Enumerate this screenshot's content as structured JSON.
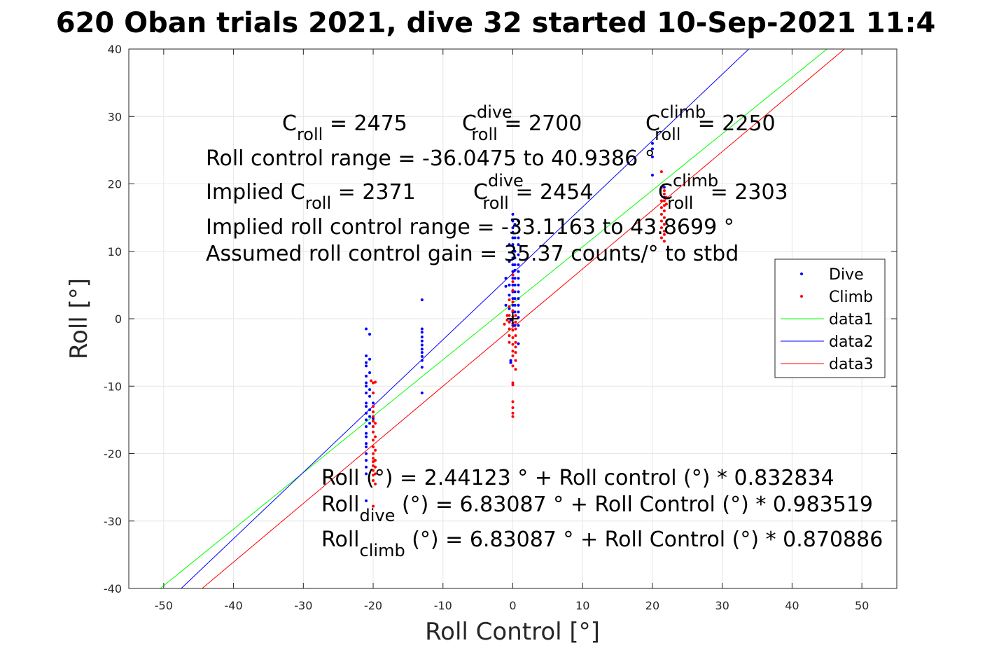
{
  "chart_data": {
    "type": "scatter",
    "title": "620 Oban trials 2021, dive 32 started 10-Sep-2021 11:4",
    "xlabel": "Roll Control [°]",
    "ylabel": "Roll [°]",
    "xlim": [
      -55,
      55
    ],
    "ylim": [
      -40,
      40
    ],
    "xticks": [
      -50,
      -40,
      -30,
      -20,
      -10,
      0,
      10,
      20,
      30,
      40,
      50
    ],
    "yticks": [
      -40,
      -30,
      -20,
      -10,
      0,
      10,
      20,
      30,
      40
    ],
    "xtick_labels": [
      "-50",
      "-40",
      "-30",
      "-20",
      "-10",
      "0",
      "10",
      "20",
      "30",
      "40",
      "50"
    ],
    "ytick_labels": [
      "-40",
      "-30",
      "-20",
      "-10",
      "0",
      "10",
      "20",
      "30",
      "40"
    ],
    "grid": true,
    "legend_position": "right",
    "series": [
      {
        "name": "Dive",
        "kind": "points",
        "color": "#0000ff",
        "points": [
          [
            -21,
            -1.5
          ],
          [
            -21,
            -5.5
          ],
          [
            -21,
            -6.5
          ],
          [
            -21,
            -7
          ],
          [
            -21,
            -8.5
          ],
          [
            -21,
            -9.5
          ],
          [
            -21,
            -10
          ],
          [
            -21,
            -11
          ],
          [
            -21,
            -12.5
          ],
          [
            -21,
            -13
          ],
          [
            -21,
            -14
          ],
          [
            -21,
            -15
          ],
          [
            -21,
            -16
          ],
          [
            -21,
            -17
          ],
          [
            -21,
            -17.5
          ],
          [
            -21,
            -18.5
          ],
          [
            -21,
            -19
          ],
          [
            -21,
            -20
          ],
          [
            -21,
            -21
          ],
          [
            -21,
            -22
          ],
          [
            -21,
            -23
          ],
          [
            -21,
            -27
          ],
          [
            -20.5,
            -2.3
          ],
          [
            -20.5,
            -6
          ],
          [
            -20.5,
            -8
          ],
          [
            -20.5,
            -10.5
          ],
          [
            -20.5,
            -11.5
          ],
          [
            -20.5,
            -13.5
          ],
          [
            -20.5,
            -14.5
          ],
          [
            -20.5,
            -15.5
          ],
          [
            -20,
            -12.5
          ],
          [
            -20,
            -14.8
          ],
          [
            -20,
            -16
          ],
          [
            -13,
            2.8
          ],
          [
            -13,
            -1.5
          ],
          [
            -13,
            -2
          ],
          [
            -13,
            -2.7
          ],
          [
            -13,
            -3.3
          ],
          [
            -13,
            -3.9
          ],
          [
            -13,
            -4.5
          ],
          [
            -13,
            -5
          ],
          [
            -13,
            -5.6
          ],
          [
            -13,
            -6.2
          ],
          [
            -13,
            -7.2
          ],
          [
            -13,
            -11
          ],
          [
            -1,
            6
          ],
          [
            -1,
            4.8
          ],
          [
            -1,
            2
          ],
          [
            -0.5,
            11
          ],
          [
            -0.5,
            8.5
          ],
          [
            -0.5,
            5
          ],
          [
            -0.5,
            3.5
          ],
          [
            -0.5,
            1.5
          ],
          [
            -0.3,
            -0.2
          ],
          [
            -0.3,
            -6.2
          ],
          [
            -0.3,
            -6.5
          ],
          [
            0,
            15.5
          ],
          [
            0,
            14.5
          ],
          [
            0,
            13.5
          ],
          [
            0,
            12.8
          ],
          [
            0,
            12
          ],
          [
            0,
            11
          ],
          [
            0,
            10
          ],
          [
            0,
            9
          ],
          [
            0,
            8
          ],
          [
            0,
            7
          ],
          [
            0,
            6.5
          ],
          [
            0,
            6
          ],
          [
            0,
            5
          ],
          [
            0,
            4
          ],
          [
            0,
            3
          ],
          [
            0,
            2
          ],
          [
            0,
            1
          ],
          [
            0,
            -1
          ],
          [
            0.3,
            14
          ],
          [
            0.3,
            12
          ],
          [
            0.3,
            10
          ],
          [
            0.3,
            9
          ],
          [
            0.3,
            8
          ],
          [
            0.3,
            7.2
          ],
          [
            0.3,
            6
          ],
          [
            0.3,
            5
          ],
          [
            0.3,
            4
          ],
          [
            0.3,
            3
          ],
          [
            0.3,
            2
          ],
          [
            0.3,
            1
          ],
          [
            0.3,
            -1
          ],
          [
            0.8,
            14.5
          ],
          [
            0.8,
            12
          ],
          [
            0.8,
            11
          ],
          [
            0.8,
            9.5
          ],
          [
            0.8,
            8
          ],
          [
            0.8,
            7
          ],
          [
            0.8,
            6
          ],
          [
            0.8,
            5
          ],
          [
            0.8,
            4
          ],
          [
            0.8,
            3
          ],
          [
            0.8,
            2
          ],
          [
            0.8,
            1
          ],
          [
            0.8,
            0.2
          ],
          [
            0.8,
            -1
          ],
          [
            0.8,
            -3.7
          ],
          [
            20,
            26
          ],
          [
            20,
            25.2
          ],
          [
            20,
            24
          ],
          [
            20,
            21.3
          ],
          [
            21.7,
            19.5
          ],
          [
            21.7,
            18
          ]
        ]
      },
      {
        "name": "Climb",
        "kind": "points",
        "color": "#ff0000",
        "points": [
          [
            -20.3,
            -9.2
          ],
          [
            -20,
            -9.5
          ],
          [
            -20,
            -11
          ],
          [
            -20,
            -13
          ],
          [
            -20,
            -13.8
          ],
          [
            -20,
            -14.5
          ],
          [
            -20,
            -15.2
          ],
          [
            -20,
            -16
          ],
          [
            -20,
            -16.8
          ],
          [
            -20,
            -18
          ],
          [
            -20,
            -19
          ],
          [
            -20,
            -20
          ],
          [
            -20,
            -20.7
          ],
          [
            -20,
            -21.2
          ],
          [
            -20,
            -21.8
          ],
          [
            -20,
            -22.5
          ],
          [
            -20,
            -23.2
          ],
          [
            -20,
            -24
          ],
          [
            -20,
            -27.8
          ],
          [
            -19.7,
            -9.4
          ],
          [
            -19.7,
            -15.5
          ],
          [
            -19.7,
            -17.5
          ],
          [
            -19.7,
            -19.5
          ],
          [
            -19.7,
            -21
          ],
          [
            -19.7,
            -22
          ],
          [
            -19.7,
            -23
          ],
          [
            -19.7,
            -24.5
          ],
          [
            -1.2,
            -0.8
          ],
          [
            -0.8,
            0.5
          ],
          [
            -0.8,
            -0.2
          ],
          [
            -0.5,
            2.8
          ],
          [
            -0.5,
            1.8
          ],
          [
            -0.5,
            0.5
          ],
          [
            -0.5,
            -0.5
          ],
          [
            -0.5,
            -1.5
          ],
          [
            -0.5,
            -2.5
          ],
          [
            -0.5,
            -3.5
          ],
          [
            0,
            6.5
          ],
          [
            0,
            5.5
          ],
          [
            0,
            4.2
          ],
          [
            0,
            2.5
          ],
          [
            0,
            1.2
          ],
          [
            0,
            0.3
          ],
          [
            0,
            -0.7
          ],
          [
            0,
            -1.7
          ],
          [
            0,
            -2.8
          ],
          [
            0,
            -3.8
          ],
          [
            0,
            -4.8
          ],
          [
            0,
            -5.5
          ],
          [
            0,
            -7
          ],
          [
            0,
            -9.5
          ],
          [
            0,
            -9.8
          ],
          [
            0,
            -12.3
          ],
          [
            0,
            -13.2
          ],
          [
            0,
            -14
          ],
          [
            0,
            -14.5
          ],
          [
            0.4,
            0.5
          ],
          [
            0.4,
            -0.5
          ],
          [
            0.4,
            -1.5
          ],
          [
            0.4,
            -2.5
          ],
          [
            0.4,
            -3.5
          ],
          [
            0.4,
            -4.2
          ],
          [
            0.4,
            -5
          ],
          [
            0.4,
            -6.2
          ],
          [
            0.4,
            -7.5
          ],
          [
            21.3,
            21.8
          ],
          [
            21.3,
            19.5
          ],
          [
            21.3,
            17.5
          ],
          [
            21.3,
            16.5
          ],
          [
            21.3,
            15.5
          ],
          [
            21.3,
            14.5
          ],
          [
            21.3,
            13.5
          ],
          [
            21.3,
            12
          ],
          [
            21.7,
            19
          ],
          [
            21.7,
            18.5
          ],
          [
            21.7,
            17.5
          ],
          [
            21.7,
            16.8
          ],
          [
            21.7,
            16
          ],
          [
            21.7,
            15
          ],
          [
            21.7,
            14
          ],
          [
            21.7,
            13
          ],
          [
            21.7,
            12.5
          ],
          [
            21.7,
            11.5
          ],
          [
            22,
            18
          ],
          [
            22,
            17
          ]
        ]
      },
      {
        "name": "data1",
        "kind": "line",
        "color": "#00ff00",
        "x": [
          -50.5,
          45
        ],
        "y": [
          -40,
          40
        ]
      },
      {
        "name": "data2",
        "kind": "line",
        "color": "#0000ff",
        "x": [
          -47.5,
          33.8
        ],
        "y": [
          -40,
          40
        ]
      },
      {
        "name": "data3",
        "kind": "line",
        "color": "#ff0000",
        "x": [
          -44.5,
          47.5
        ],
        "y": [
          -40,
          40
        ]
      }
    ],
    "marker": {
      "kind": "plus",
      "color": "#000000",
      "x": 0,
      "y": 0
    },
    "annotations": {
      "top": [
        {
          "type": "coef",
          "base": "C",
          "sub": "roll",
          "value": " = 2475"
        },
        {
          "type": "coef",
          "base": "C",
          "sup": "dive",
          "sub": "roll",
          "value": " = 2700"
        },
        {
          "type": "coef",
          "base": "C",
          "sup": "climb",
          "sub": "roll",
          "value": " = 2250"
        },
        {
          "type": "plain",
          "text": "Roll control range = -36.0475 to 40.9386 °"
        },
        {
          "type": "coef",
          "base": "Implied C",
          "sub": "roll",
          "value": " = 2371"
        },
        {
          "type": "coef",
          "base": "C",
          "sup": "dive",
          "sub": "roll",
          "value": " = 2454"
        },
        {
          "type": "coef",
          "base": "C",
          "sup": "climb",
          "sub": "roll",
          "value": " = 2303"
        },
        {
          "type": "plain",
          "text": "Implied roll control range = -33.1163 to 43.8699 °"
        },
        {
          "type": "plain",
          "text": "Assumed roll control gain = 35.37 counts/° to stbd"
        }
      ],
      "bottom": [
        {
          "type": "plain",
          "text": "Roll (°) = 2.44123 ° + Roll control (°) * 0.832834"
        },
        {
          "type": "sub",
          "base": "Roll",
          "sub": "dive",
          "rest": " (°) = 6.83087 ° + Roll Control (°) * 0.983519"
        },
        {
          "type": "sub",
          "base": "Roll",
          "sub": "climb",
          "rest": " (°) = 6.83087 ° + Roll Control (°) * 0.870886"
        }
      ]
    }
  }
}
